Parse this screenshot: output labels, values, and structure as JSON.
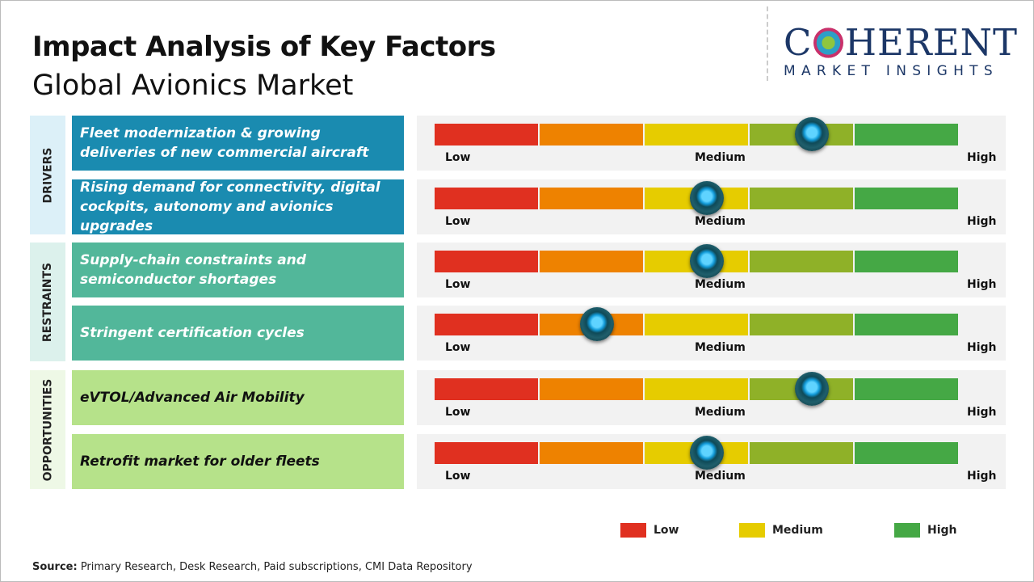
{
  "title": "Impact Analysis of Key Factors",
  "subtitle": "Global Avionics Market",
  "logo": {
    "main": "COHERENT",
    "sub": "MARKET INSIGHTS"
  },
  "scale_labels": {
    "low": "Low",
    "medium": "Medium",
    "high": "High"
  },
  "scale_colors": [
    "#e03020",
    "#ee8200",
    "#e6cc00",
    "#8fb128",
    "#45a845"
  ],
  "categories": [
    {
      "label": "DRIVERS",
      "bg": "#dcf0f8"
    },
    {
      "label": "RESTRAINTS",
      "bg": "#dcf1ec"
    },
    {
      "label": "OPPORTUNITIES",
      "bg": "#eef8e6"
    }
  ],
  "factors": [
    {
      "text": "Fleet modernization & growing deliveries of new commercial aircraft",
      "category": "DRIVERS",
      "impact": 0.72,
      "bg": "#1a8bb0",
      "fg": "#ffffff"
    },
    {
      "text": "Rising demand for connectivity, digital cockpits, autonomy and avionics upgrades",
      "category": "DRIVERS",
      "impact": 0.52,
      "bg": "#1a8bb0",
      "fg": "#ffffff"
    },
    {
      "text": "Supply-chain constraints and semiconductor shortages",
      "category": "RESTRAINTS",
      "impact": 0.52,
      "bg": "#52b79a",
      "fg": "#ffffff"
    },
    {
      "text": "Stringent certification cycles",
      "category": "RESTRAINTS",
      "impact": 0.31,
      "bg": "#52b79a",
      "fg": "#ffffff"
    },
    {
      "text": "eVTOL/Advanced Air Mobility",
      "category": "OPPORTUNITIES",
      "impact": 0.72,
      "bg": "#b6e28a",
      "fg": "#111111"
    },
    {
      "text": "Retrofit market for older fleets",
      "category": "OPPORTUNITIES",
      "impact": 0.52,
      "bg": "#b6e28a",
      "fg": "#111111"
    }
  ],
  "legend": [
    {
      "label": "Low",
      "color": "#e03020"
    },
    {
      "label": "Medium",
      "color": "#e6cc00"
    },
    {
      "label": "High",
      "color": "#45a845"
    }
  ],
  "source": {
    "label": "Source:",
    "text": " Primary Research, Desk Research, Paid subscriptions, CMI Data Repository"
  }
}
